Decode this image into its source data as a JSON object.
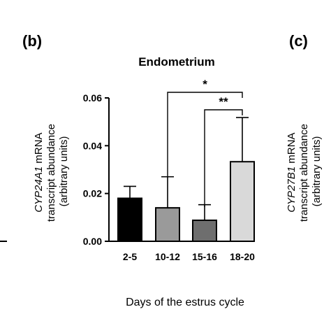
{
  "panels": {
    "b": "(b)",
    "c": "(c)"
  },
  "chart_data": {
    "type": "bar",
    "title": "Endometrium",
    "categories": [
      "2-5",
      "10-12",
      "15-16",
      "18-20"
    ],
    "values": [
      0.018,
      0.014,
      0.0088,
      0.0333
    ],
    "errors": [
      0.005,
      0.013,
      0.0065,
      0.0185
    ],
    "bar_colors": [
      "#000000",
      "#9a9a9a",
      "#6e6e6e",
      "#d9d9d9"
    ],
    "xlabel": "Days of the estrus cycle",
    "ylabel": {
      "gene": "CYP24A1",
      "line1_suffix": " mRNA",
      "line2": "transcript abundance",
      "line3": "(arbitrary units)"
    },
    "ylim": [
      0,
      0.06
    ],
    "yticks": [
      0.0,
      0.02,
      0.04,
      0.06
    ],
    "ytick_labels": [
      "0.00",
      "0.02",
      "0.04",
      "0.06"
    ],
    "significance": [
      {
        "from": "10-12",
        "to": "18-20",
        "label": "*"
      },
      {
        "from": "15-16",
        "to": "18-20",
        "label": "**"
      }
    ]
  },
  "partial_panel_c": {
    "ylabel": {
      "gene": "CYP27B1",
      "line1_suffix": " mRNA",
      "line2": "transcript abundance",
      "line3": "(arbitrary units)"
    }
  }
}
